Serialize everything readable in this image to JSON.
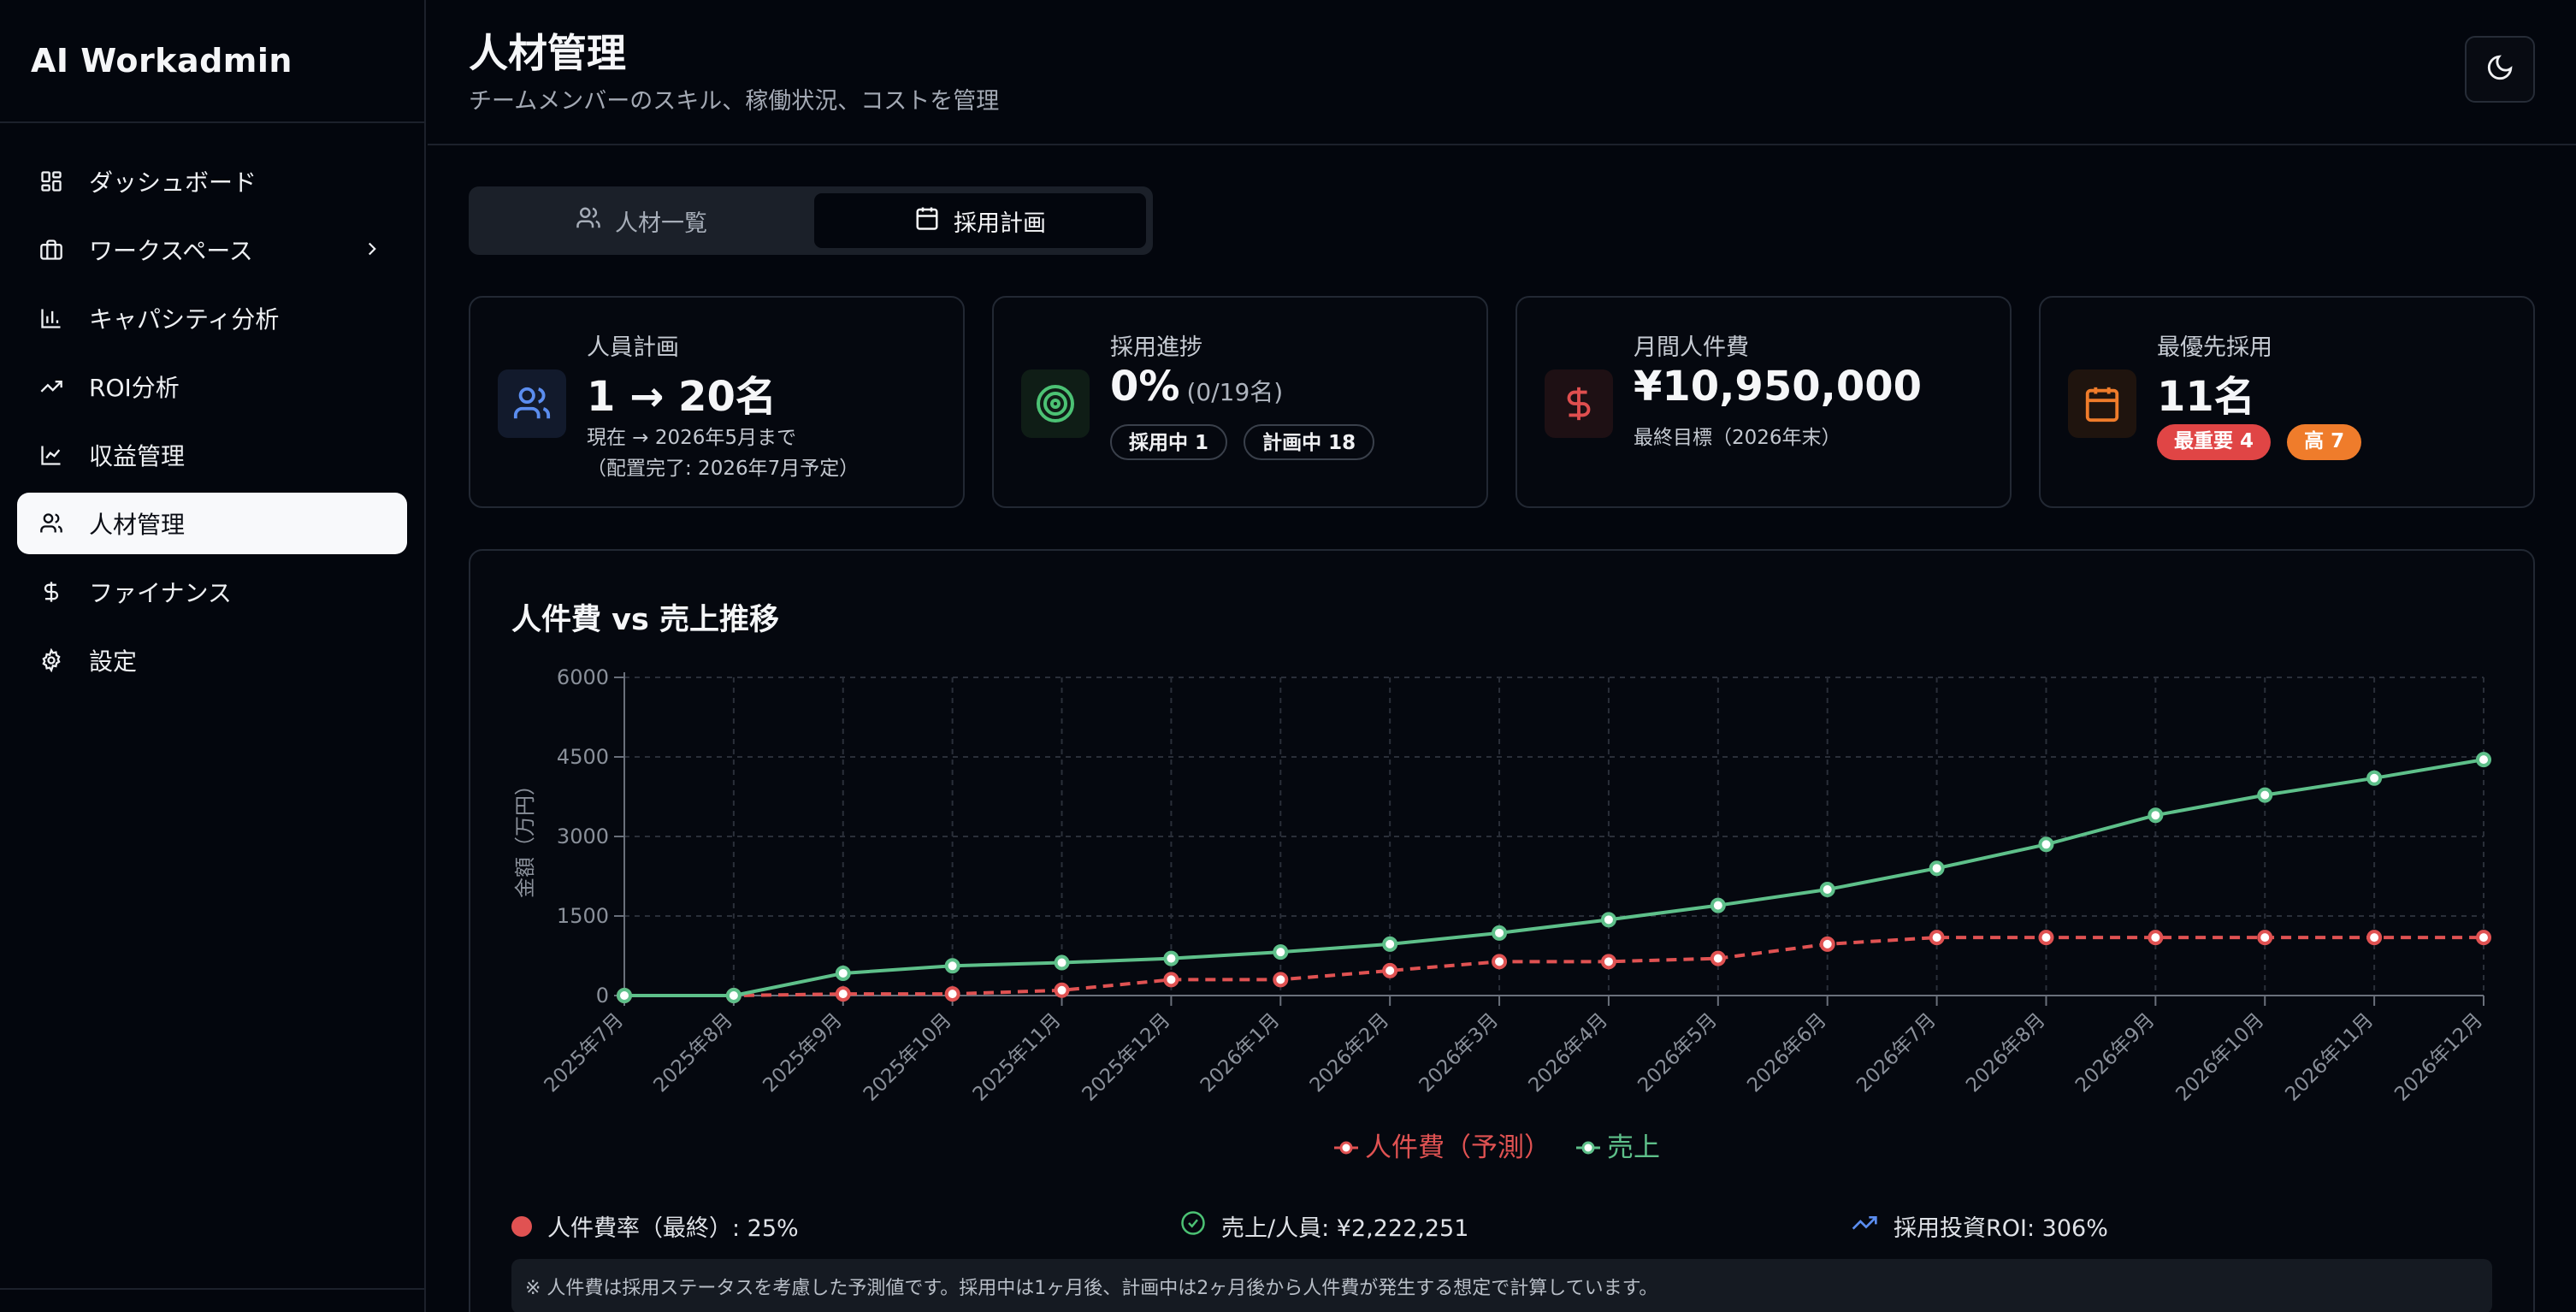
{
  "app": {
    "brand": "AI Workadmin"
  },
  "sidebar": {
    "items": [
      {
        "label": "ダッシュボード",
        "icon": "dashboard-grid-icon"
      },
      {
        "label": "ワークスペース",
        "icon": "briefcase-icon",
        "has_submenu": true
      },
      {
        "label": "キャパシティ分析",
        "icon": "bar-chart-icon"
      },
      {
        "label": "ROI分析",
        "icon": "trending-up-icon"
      },
      {
        "label": "収益管理",
        "icon": "line-chart-icon"
      },
      {
        "label": "人材管理",
        "icon": "users-icon",
        "active": true
      },
      {
        "label": "ファイナンス",
        "icon": "dollar-icon"
      },
      {
        "label": "設定",
        "icon": "gear-icon"
      }
    ]
  },
  "header": {
    "title": "人材管理",
    "subtitle": "チームメンバーのスキル、稼働状況、コストを管理",
    "theme_icon": "moon-icon"
  },
  "tabs": [
    {
      "label": "人材一覧",
      "icon": "users-icon",
      "active": false
    },
    {
      "label": "採用計画",
      "icon": "calendar-icon",
      "active": true
    }
  ],
  "cards": {
    "headcount": {
      "label": "人員計画",
      "value": "1 → 20名",
      "sub1": "現在 → 2026年5月まで",
      "sub2": "（配置完了: 2026年7月予定）",
      "icon": "users-icon",
      "color": "#5b8def"
    },
    "progress": {
      "label": "採用進捗",
      "value": "0%",
      "value_detail": "(0/19名)",
      "pill1": "採用中 1",
      "pill2": "計画中 18",
      "icon": "target-icon",
      "color": "#4cc274"
    },
    "cost": {
      "label": "月間人件費",
      "value": "¥10,950,000",
      "sub": "最終目標（2026年末）",
      "icon": "dollar-icon",
      "color": "#e04f4f"
    },
    "priority": {
      "label": "最優先採用",
      "value": "11名",
      "pill1": "最重要 4",
      "pill2": "高 7",
      "icon": "calendar-icon",
      "color": "#ef7c2b"
    }
  },
  "chart": {
    "title": "人件費 vs 売上推移",
    "footer_stats": {
      "cost_ratio": "人件費率（最終）: 25%",
      "sales_per_person": "売上/人員: ¥2,222,251",
      "hiring_roi": "採用投資ROI: 306%"
    },
    "note": "※ 人件費は採用ステータスを考慮した予測値です。採用中は1ヶ月後、計画中は2ヶ月後から人件費が発生する想定で計算しています。"
  },
  "chart_data": {
    "type": "line",
    "title": "人件費 vs 売上推移",
    "ylabel": "金額（万円）",
    "xlabel": "",
    "ylim": [
      0,
      6000
    ],
    "yticks": [
      "0",
      "1500",
      "3000",
      "4500",
      "6000"
    ],
    "grid": true,
    "legend": "bottom-center",
    "categories": [
      "2025年7月",
      "2025年8月",
      "2025年9月",
      "2025年10月",
      "2025年11月",
      "2025年12月",
      "2026年1月",
      "2026年2月",
      "2026年3月",
      "2026年4月",
      "2026年5月",
      "2026年6月",
      "2026年7月",
      "2026年8月",
      "2026年9月",
      "2026年10月",
      "2026年11月",
      "2026年12月"
    ],
    "series": [
      {
        "name": "人件費（予測）",
        "color": "#e05252",
        "dashed": true,
        "values": [
          0,
          0,
          30,
          30,
          100,
          300,
          300,
          470,
          640,
          640,
          700,
          970,
          1095,
          1095,
          1095,
          1095,
          1095,
          1095
        ]
      },
      {
        "name": "売上",
        "color": "#5ec08a",
        "dashed": false,
        "values": [
          0,
          0,
          420,
          560,
          620,
          700,
          820,
          970,
          1180,
          1430,
          1700,
          2000,
          2400,
          2850,
          3400,
          3780,
          4100,
          4450
        ]
      }
    ]
  }
}
